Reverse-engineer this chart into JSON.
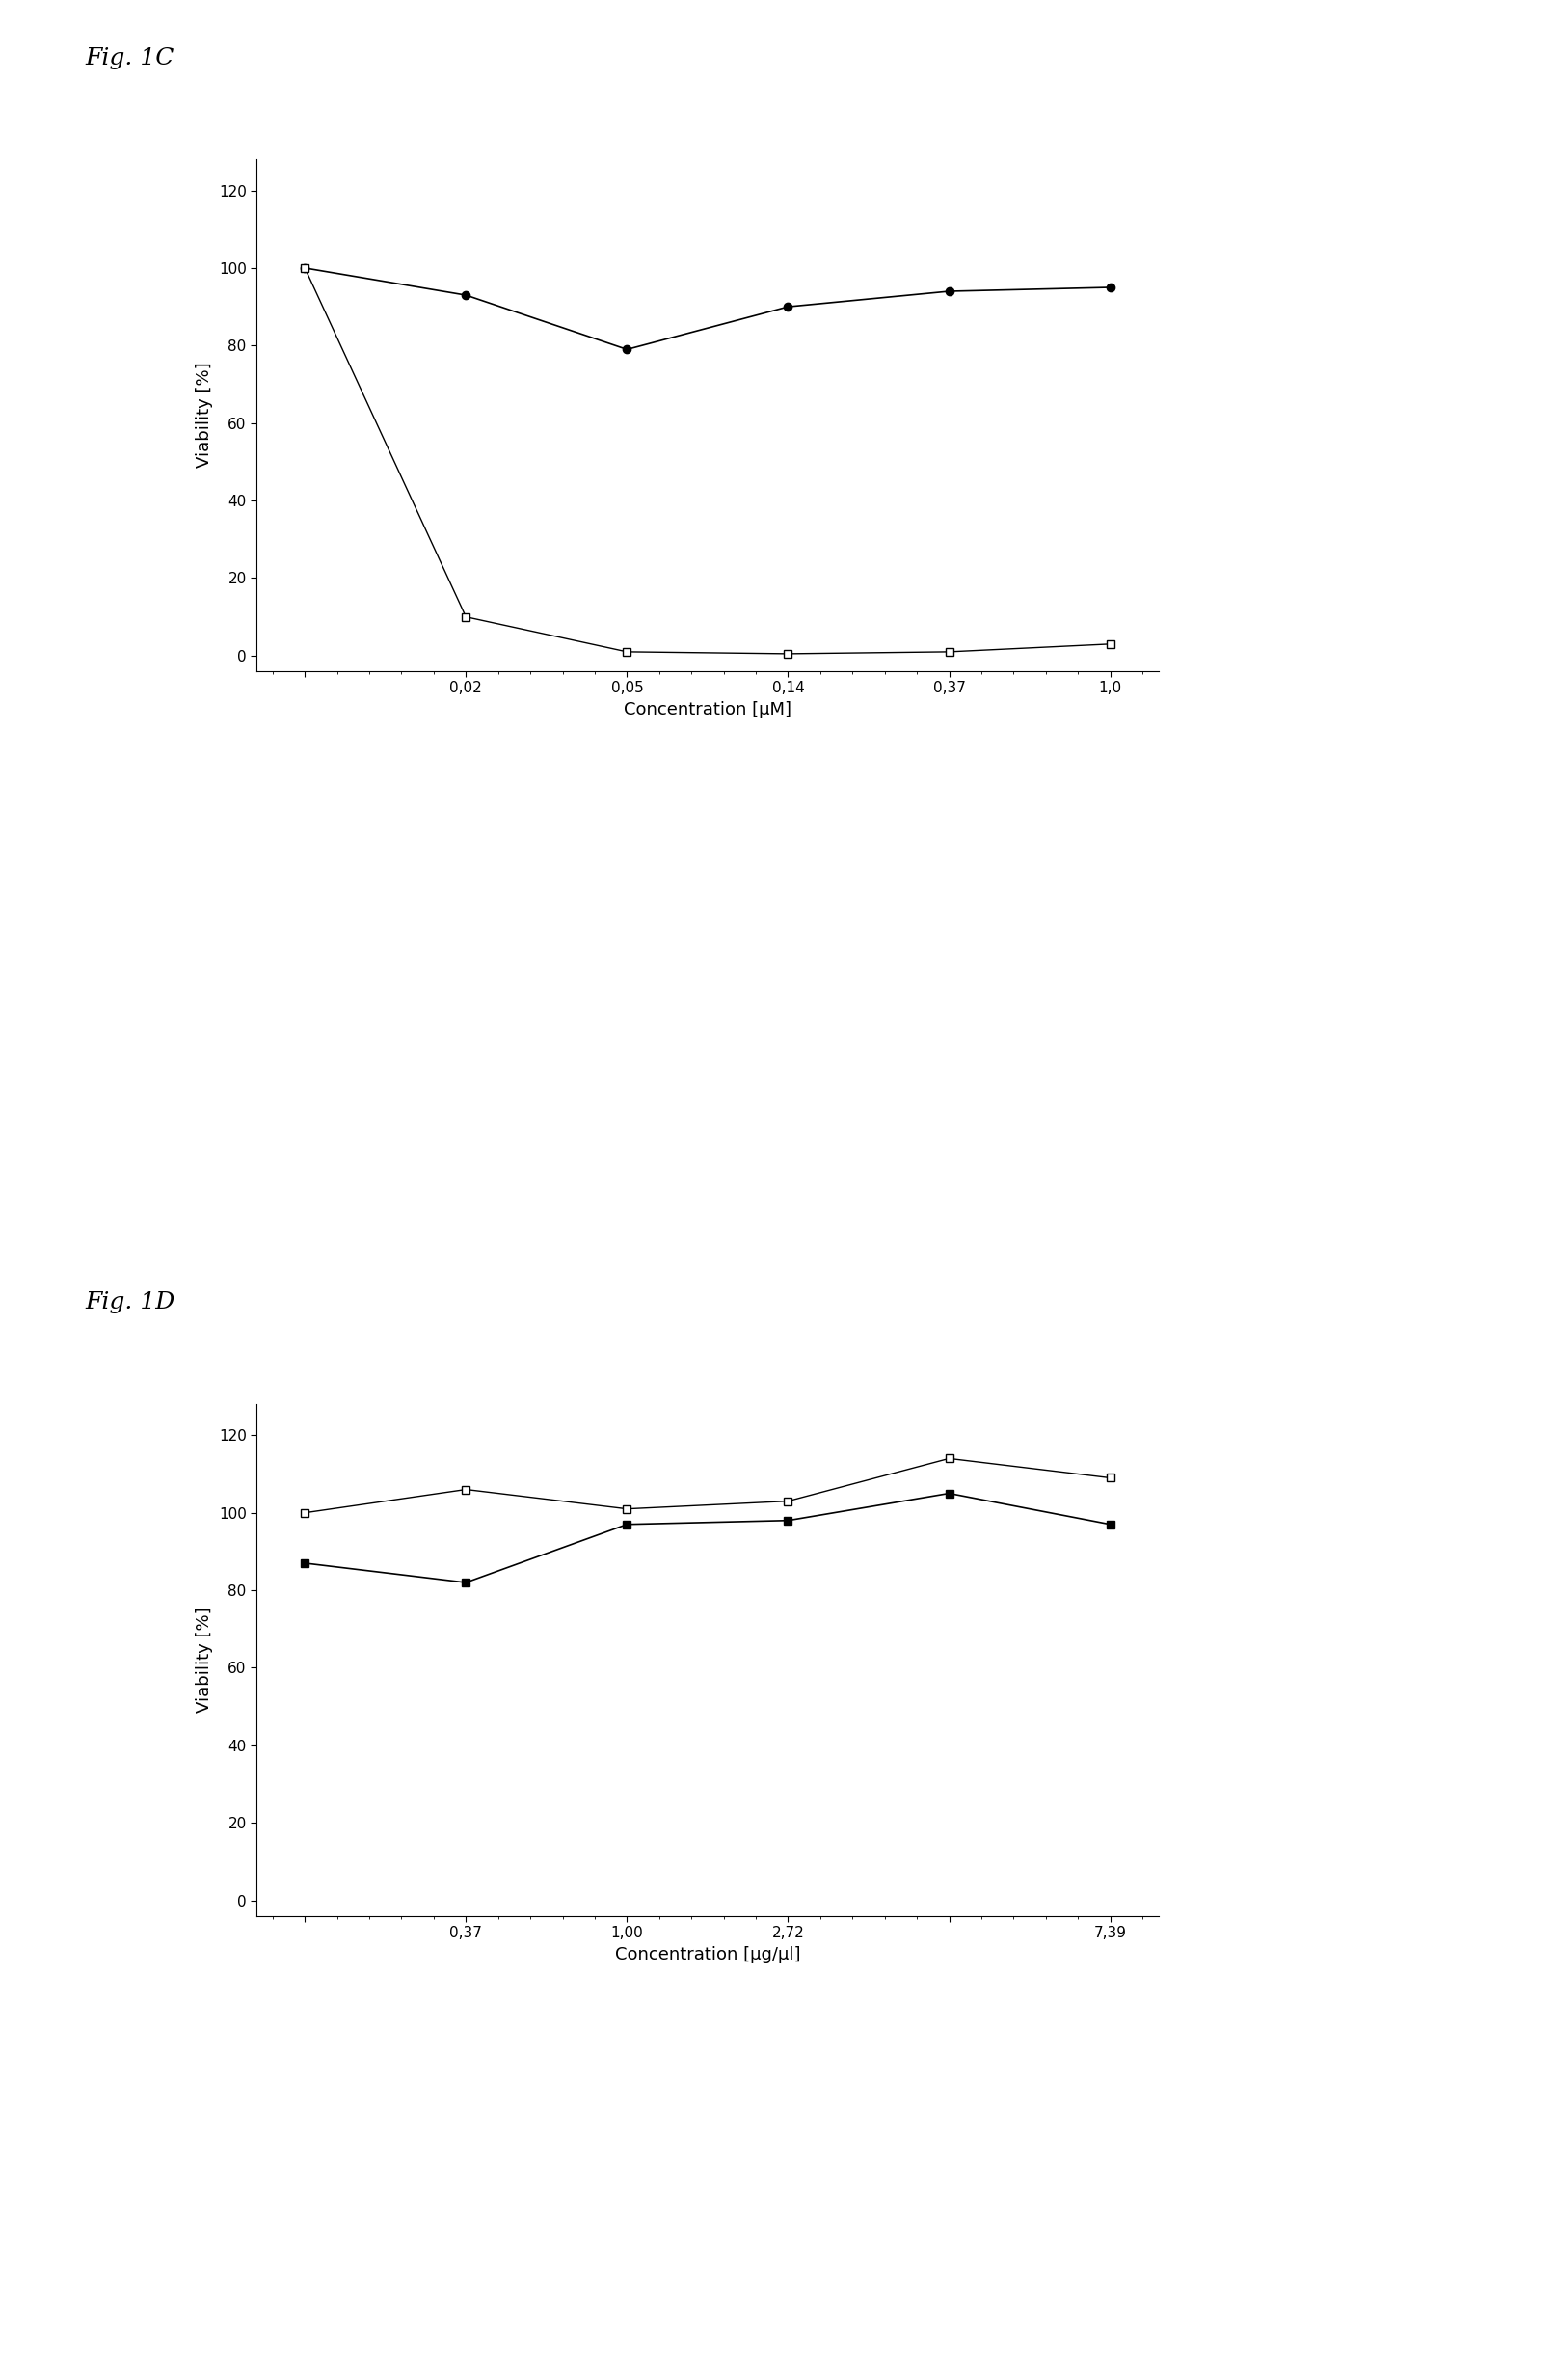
{
  "fig1C": {
    "title": "Fig. 1C",
    "xlabel": "Concentration [μM]",
    "ylabel": "Viability [%]",
    "yticks": [
      0,
      20,
      40,
      60,
      80,
      100,
      120
    ],
    "ylim": [
      -4,
      128
    ],
    "xtick_labels": [
      "",
      "0,02",
      "0,05",
      "0,14",
      "0,37",
      "1,0"
    ],
    "xtick_positions": [
      0,
      1,
      2,
      3,
      4,
      5
    ],
    "series_filled": {
      "x": [
        0,
        1,
        2,
        3,
        4,
        5
      ],
      "y": [
        100,
        93,
        79,
        90,
        94,
        95
      ],
      "marker": "o",
      "color": "#000000",
      "markersize": 6,
      "linewidth": 1.2
    },
    "series_open": {
      "x": [
        0,
        1,
        2,
        3,
        4,
        5
      ],
      "y": [
        100,
        10,
        1,
        0.5,
        1,
        3
      ],
      "marker": "s",
      "color": "#000000",
      "markersize": 6,
      "linewidth": 1.0
    }
  },
  "fig1D": {
    "title": "Fig. 1D",
    "xlabel": "Concentration [μg/μl]",
    "ylabel": "Viability [%]",
    "yticks": [
      0,
      20,
      40,
      60,
      80,
      100,
      120
    ],
    "ylim": [
      -4,
      128
    ],
    "xtick_labels": [
      "",
      "0,37",
      "1,00",
      "2,72",
      "",
      "7,39"
    ],
    "xtick_positions": [
      0,
      1,
      2,
      3,
      4,
      5
    ],
    "series_filled": {
      "x": [
        0,
        1,
        2,
        3,
        4,
        5
      ],
      "y": [
        87,
        82,
        97,
        98,
        105,
        97
      ],
      "marker": "s",
      "color": "#000000",
      "markersize": 6,
      "linewidth": 1.2
    },
    "series_open": {
      "x": [
        0,
        1,
        2,
        3,
        4,
        5
      ],
      "y": [
        100,
        106,
        101,
        103,
        114,
        109
      ],
      "marker": "s",
      "color": "#000000",
      "markersize": 6,
      "linewidth": 1.0
    }
  },
  "background_color": "#ffffff",
  "text_color": "#000000",
  "font_size_title": 18,
  "font_size_label": 13,
  "font_size_tick": 11
}
